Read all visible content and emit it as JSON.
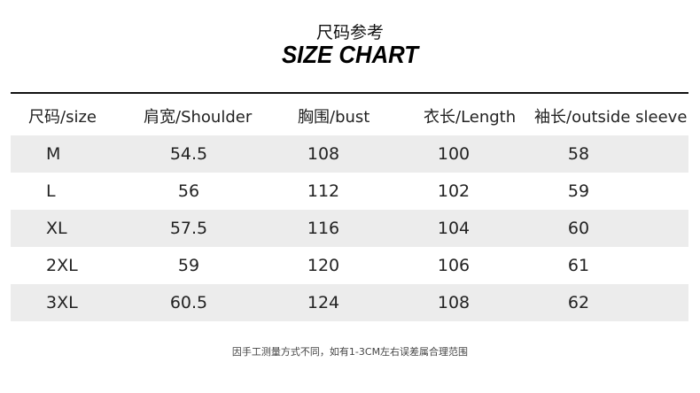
{
  "title_cn": "尺码参考",
  "title_en": "SIZE CHART",
  "headers": [
    "尺码/size",
    "肩宽/Shoulder",
    "胸围/bust",
    "衣长/Length",
    "袖长/outside sleeve"
  ],
  "rows": [
    {
      "size": "M",
      "shoulder": "54.5",
      "bust": "108",
      "length": "100",
      "sleeve": "58"
    },
    {
      "size": "L",
      "shoulder": "56",
      "bust": "112",
      "length": "102",
      "sleeve": "59"
    },
    {
      "size": "XL",
      "shoulder": "57.5",
      "bust": "116",
      "length": "104",
      "sleeve": "60"
    },
    {
      "size": "2XL",
      "shoulder": "59",
      "bust": "120",
      "length": "106",
      "sleeve": "61"
    },
    {
      "size": "3XL",
      "shoulder": "60.5",
      "bust": "124",
      "length": "108",
      "sleeve": "62"
    }
  ],
  "note": "因手工测量方式不同，如有1-3CM左右误差属合理范围",
  "colors": {
    "row_stripe": "#ececec",
    "rule": "#111111"
  }
}
